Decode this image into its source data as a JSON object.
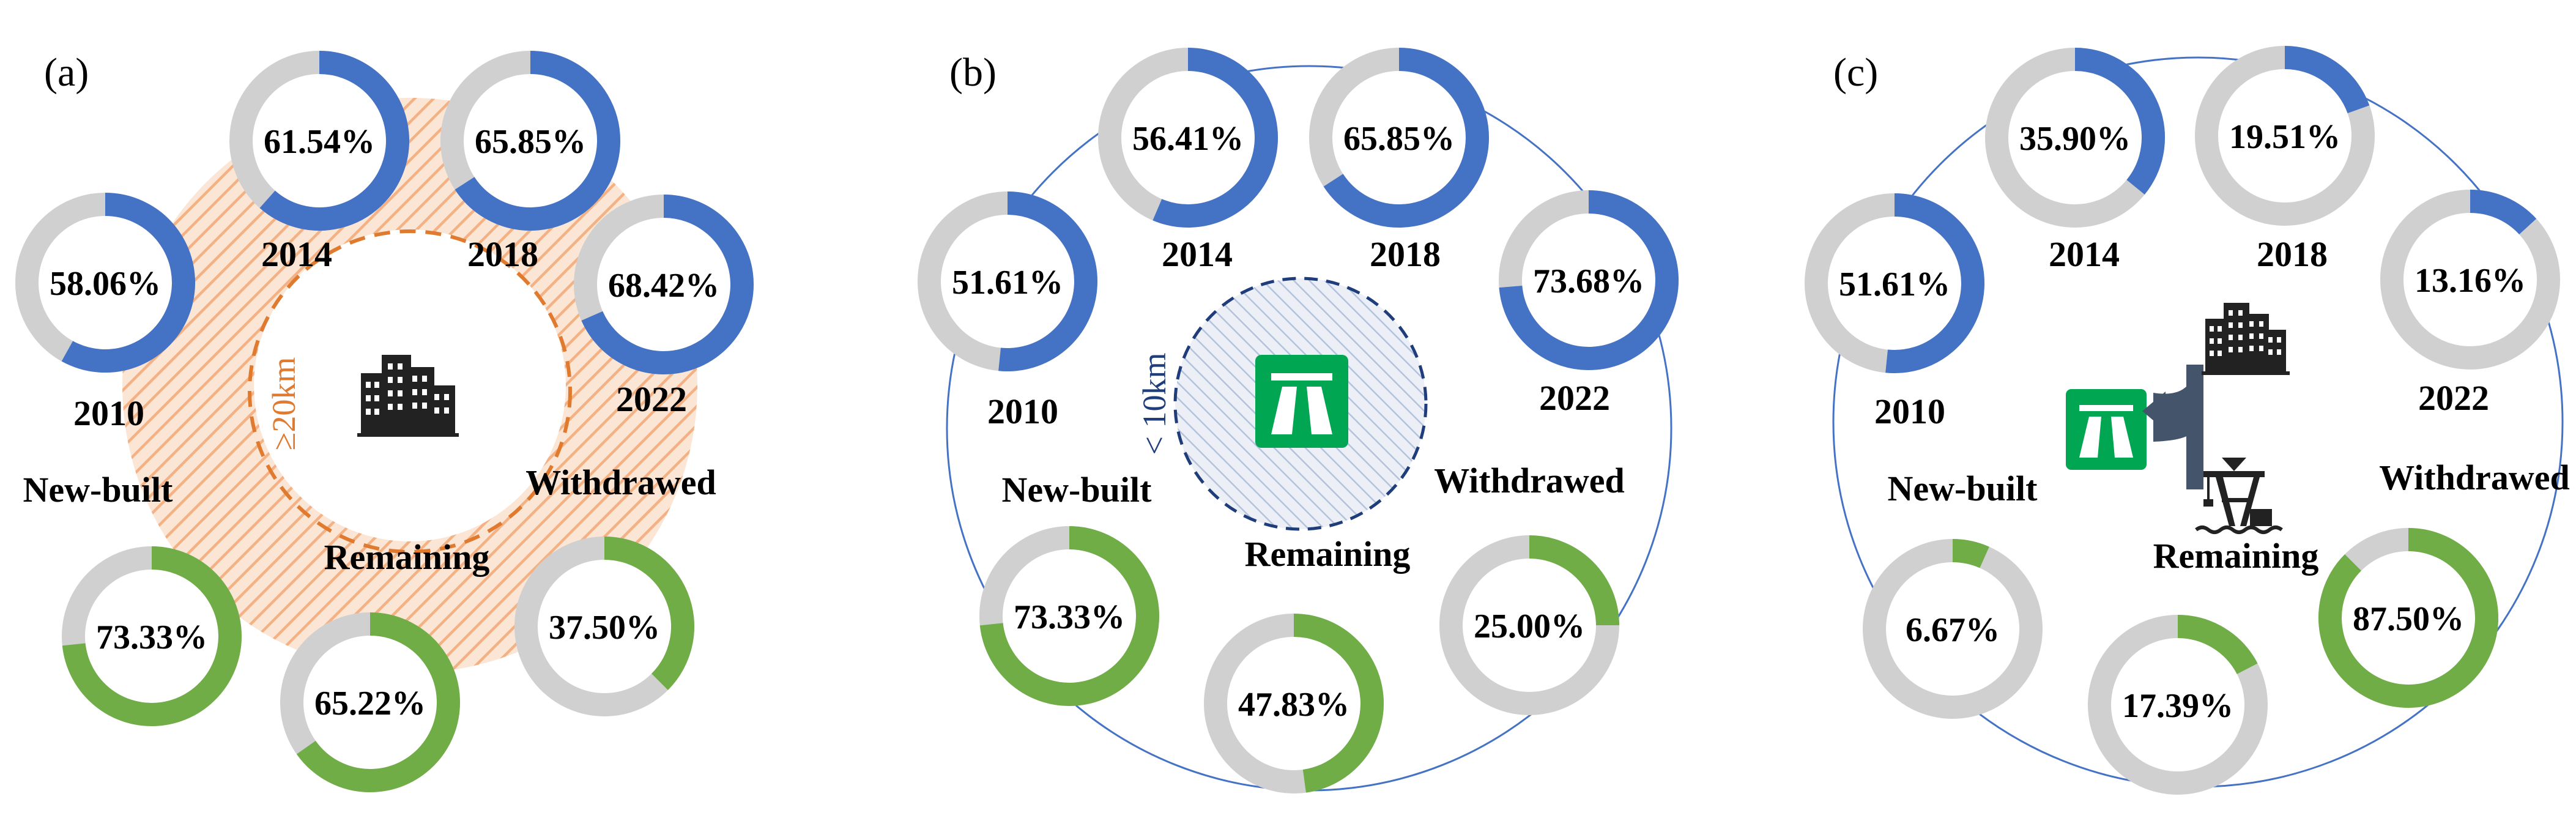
{
  "colors": {
    "blue": "#4472C4",
    "green": "#70AD47",
    "gray": "#D0D0D0",
    "hatch_orange": "#F4B183",
    "dash_orange": "#E07A2E",
    "dash_blue": "#1F3D7A",
    "ring_blue": "#4472C4",
    "motorway_green": "#00A651"
  },
  "chart_data": [
    {
      "type": "donut-set",
      "panel_label": "(a)",
      "center_icon": "city-buildings-icon",
      "radius_label": "≥20km",
      "years": [
        {
          "year": "2010",
          "percent": 58.06,
          "label": "58.06%"
        },
        {
          "year": "2014",
          "percent": 61.54,
          "label": "61.54%"
        },
        {
          "year": "2018",
          "percent": 65.85,
          "label": "65.85%"
        },
        {
          "year": "2022",
          "percent": 68.42,
          "label": "68.42%"
        }
      ],
      "status": [
        {
          "category": "New-built",
          "percent": 73.33,
          "label": "73.33%"
        },
        {
          "category": "Remaining",
          "percent": 65.22,
          "label": "65.22%"
        },
        {
          "category": "Withdrawed",
          "percent": 37.5,
          "label": "37.50%"
        }
      ]
    },
    {
      "type": "donut-set",
      "panel_label": "(b)",
      "center_icon": "motorway-icon",
      "radius_label": "< 10km",
      "years": [
        {
          "year": "2010",
          "percent": 51.61,
          "label": "51.61%"
        },
        {
          "year": "2014",
          "percent": 56.41,
          "label": "56.41%"
        },
        {
          "year": "2018",
          "percent": 65.85,
          "label": "65.85%"
        },
        {
          "year": "2022",
          "percent": 73.68,
          "label": "73.68%"
        }
      ],
      "status": [
        {
          "category": "New-built",
          "percent": 73.33,
          "label": "73.33%"
        },
        {
          "category": "Remaining",
          "percent": 47.83,
          "label": "47.83%"
        },
        {
          "category": "Withdrawed",
          "percent": 25.0,
          "label": "25.00%"
        }
      ]
    },
    {
      "type": "donut-set",
      "panel_label": "(c)",
      "center_icon": "motorway-junction-city-port-icon",
      "radius_label": "",
      "years": [
        {
          "year": "2010",
          "percent": 51.61,
          "label": "51.61%"
        },
        {
          "year": "2014",
          "percent": 35.9,
          "label": "35.90%"
        },
        {
          "year": "2018",
          "percent": 19.51,
          "label": "19.51%"
        },
        {
          "year": "2022",
          "percent": 13.16,
          "label": "13.16%"
        }
      ],
      "status": [
        {
          "category": "New-built",
          "percent": 6.67,
          "label": "6.67%"
        },
        {
          "category": "Remaining",
          "percent": 17.39,
          "label": "17.39%"
        },
        {
          "category": "Withdrawed",
          "percent": 87.5,
          "label": "87.50%"
        }
      ]
    }
  ]
}
